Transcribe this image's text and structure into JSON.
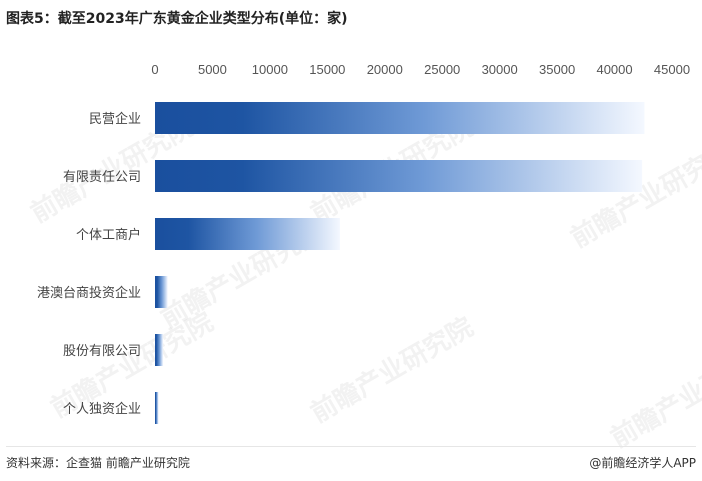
{
  "title": "图表5：截至2023年广东黄金企业类型分布(单位：家)",
  "source": "资料来源：企查猫 前瞻产业研究院",
  "credit": "@前瞻经济学人APP",
  "watermark": "前瞻产业研究院",
  "colors": {
    "bar_start": "#1a4f9e",
    "bar_end": "#ffffff",
    "axis_text": "#555555"
  },
  "chart_data": {
    "type": "bar",
    "orientation": "horizontal",
    "categories": [
      "民营企业",
      "有限责任公司",
      "个体工商户",
      "港澳台商投资企业",
      "股份有限公司",
      "个人独资企业"
    ],
    "values": [
      42600,
      42400,
      16100,
      1100,
      700,
      300
    ],
    "xlim": [
      0,
      45000
    ],
    "xticks": [
      0,
      5000,
      10000,
      15000,
      20000,
      25000,
      30000,
      35000,
      40000,
      45000
    ],
    "xtick_labels": [
      "0",
      "5000",
      "10000",
      "15000",
      "20000",
      "25000",
      "30000",
      "35000",
      "40000",
      "45000"
    ],
    "x_axis_position": "top",
    "grid": false
  }
}
